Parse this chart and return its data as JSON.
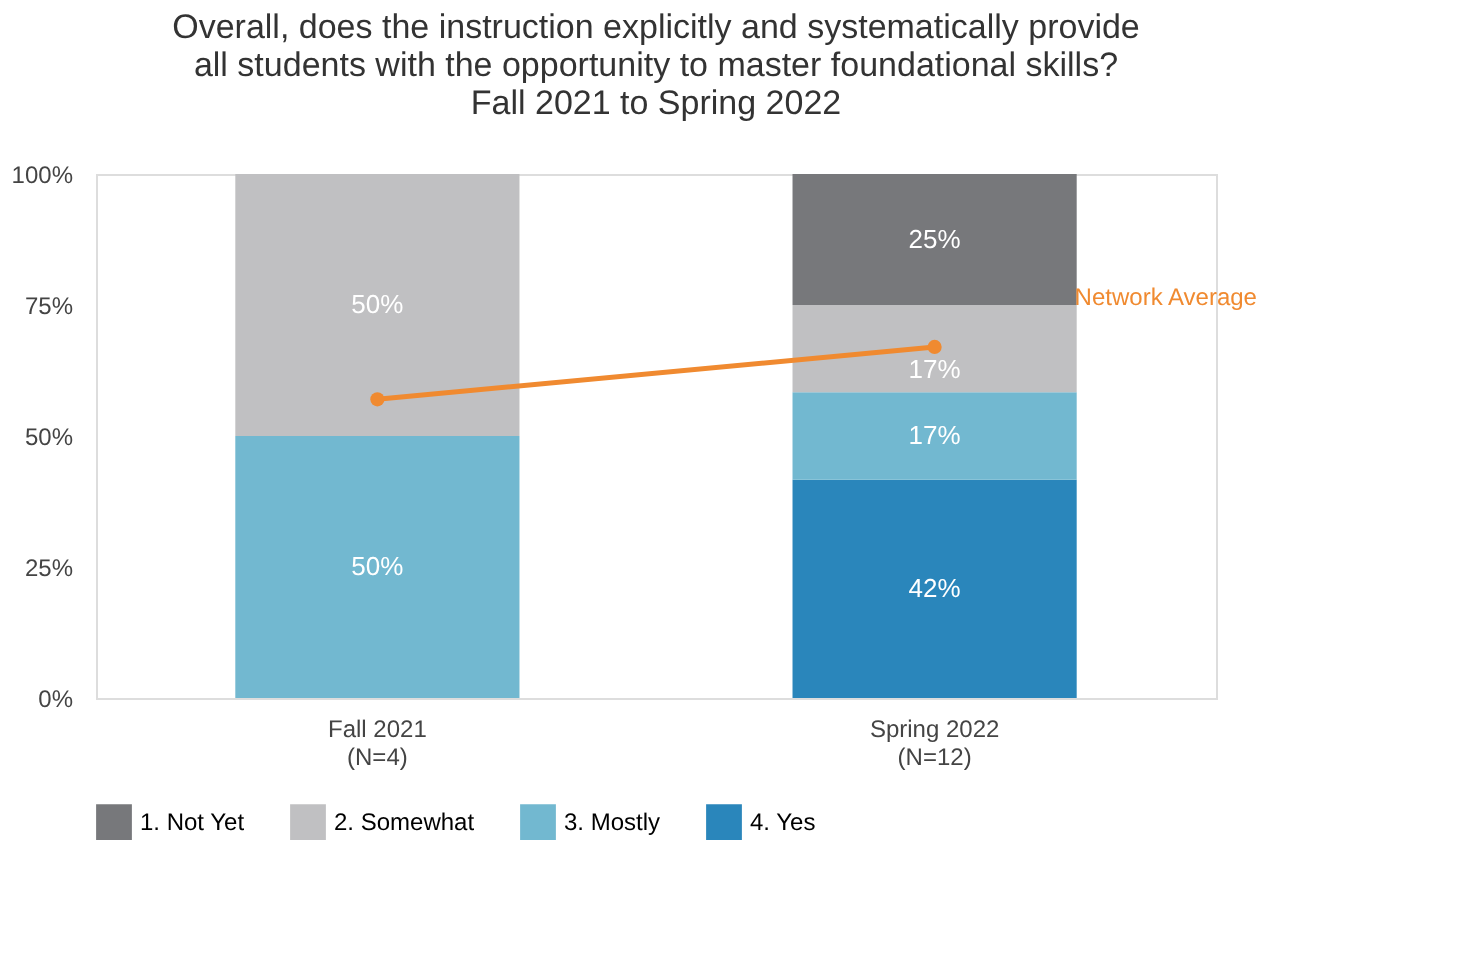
{
  "chart_data": {
    "type": "bar",
    "stacked": true,
    "title": "Overall, does the instruction explicitly and systematically provide\nall students with the opportunity to master foundational skills?\nFall 2021 to Spring 2022",
    "categories": [
      "Fall 2021\n(N=4)",
      "Spring 2022\n(N=12)"
    ],
    "series": [
      {
        "name": "4. Yes",
        "color": "#2a86bb",
        "values": [
          null,
          41.66
        ],
        "value_labels": [
          null,
          "42%"
        ]
      },
      {
        "name": "3. Mostly",
        "color": "#72b8d0",
        "values": [
          50,
          16.67
        ],
        "value_labels": [
          "50%",
          "17%"
        ]
      },
      {
        "name": "2. Somewhat",
        "color": "#c0c0c2",
        "values": [
          50,
          16.67
        ],
        "value_labels": [
          "50%",
          "17%"
        ]
      },
      {
        "name": "1. Not Yet",
        "color": "#77787b",
        "values": [
          null,
          25
        ],
        "value_labels": [
          null,
          "25%"
        ]
      },
      {
        "name": "Network Average",
        "type": "line",
        "color": "#f08a30",
        "marker": "circle",
        "values": [
          57,
          67
        ]
      }
    ],
    "ylim": [
      0,
      100
    ],
    "yticks": [
      {
        "value": 0,
        "label": "0%"
      },
      {
        "value": 25,
        "label": "25%"
      },
      {
        "value": 50,
        "label": "50%"
      },
      {
        "value": 75,
        "label": "75%"
      },
      {
        "value": 100,
        "label": "100%"
      }
    ],
    "grid": false,
    "legend": "bottom"
  }
}
